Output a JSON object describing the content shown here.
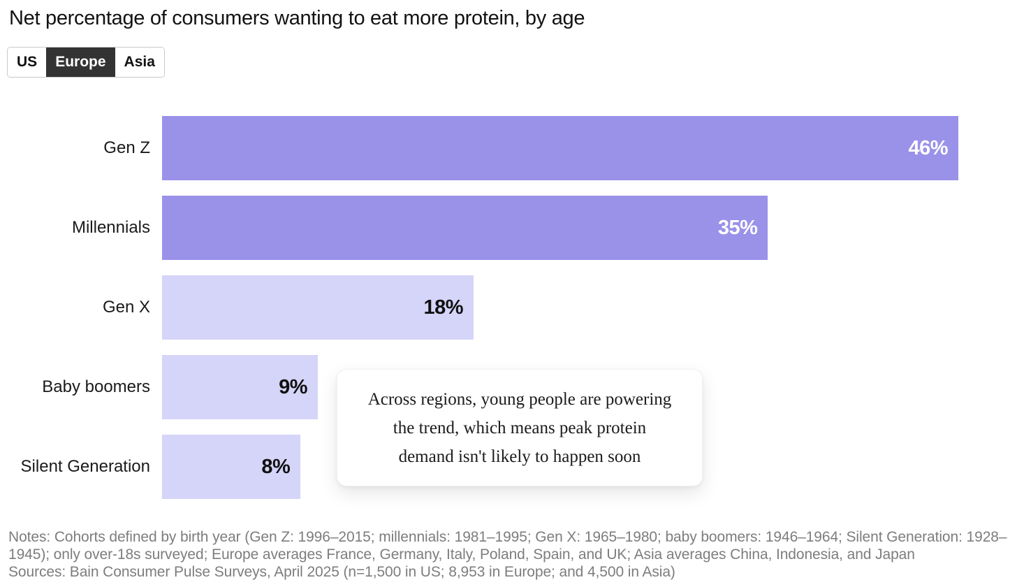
{
  "title": "Net percentage of consumers wanting to eat more protein, by age",
  "tabs": {
    "options": [
      {
        "label": "US"
      },
      {
        "label": "Europe"
      },
      {
        "label": "Asia"
      }
    ],
    "selected": "Europe"
  },
  "chart_data": {
    "type": "bar",
    "orientation": "horizontal",
    "title": "Net percentage of consumers wanting to eat more protein, by age",
    "categories": [
      "Gen Z",
      "Millennials",
      "Gen X",
      "Baby boomers",
      "Silent Generation"
    ],
    "values": [
      46,
      35,
      18,
      9,
      8
    ],
    "value_labels": [
      "46%",
      "35%",
      "18%",
      "9%",
      "8%"
    ],
    "unit": "%",
    "xlim": [
      0,
      46
    ],
    "grid": false,
    "highlight_rows": 2,
    "colors": {
      "highlight_bar": "#9a91e9",
      "muted_bar": "#d5d4f9",
      "highlight_text": "#ffffff",
      "muted_text": "#111111"
    },
    "annotation": "Across regions, young people are powering the trend, which means peak protein demand isn't likely to happen soon"
  },
  "annotation": {
    "lines": [
      "Across regions, young people are powering",
      "the trend, which means peak protein",
      "demand isn't likely to happen soon"
    ]
  },
  "footer": {
    "notes": "Notes: Cohorts defined by birth year (Gen Z: 1996–2015; millennials: 1981–1995; Gen X: 1965–1980; baby boomers: 1946–1964; Silent Generation: 1928–1945); only over-18s surveyed; Europe averages France, Germany, Italy, Poland, Spain, and UK; Asia averages China, Indonesia, and Japan",
    "sources": "Sources: Bain Consumer Pulse Surveys, April 2025 (n=1,500 in US; 8,953 in Europe; and 4,500 in Asia)"
  }
}
